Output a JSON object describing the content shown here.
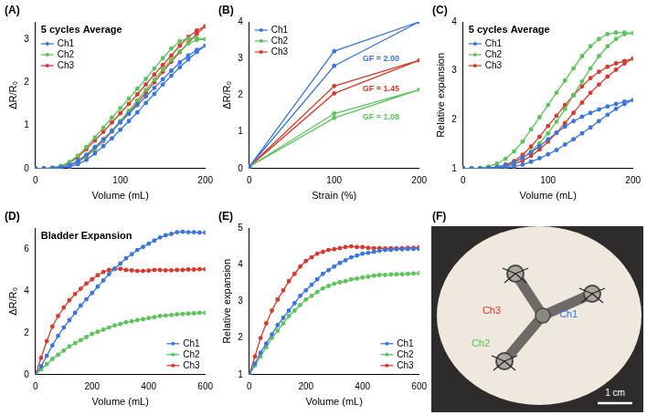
{
  "chart_data": [
    {
      "panel": "(A)",
      "type": "line",
      "title": "5 cycles Average",
      "x_label": "Volume (mL)",
      "y_label": "ΔR/R₀",
      "x": [
        0,
        10,
        20,
        30,
        40,
        50,
        60,
        70,
        80,
        90,
        100,
        110,
        120,
        130,
        140,
        150,
        160,
        170,
        180,
        190,
        200,
        190,
        180,
        170,
        160,
        150,
        140,
        130,
        120,
        110,
        100,
        90,
        80,
        70,
        60,
        50,
        40,
        30,
        20,
        10,
        0
      ],
      "series": [
        {
          "name": "Ch1",
          "color": "#3a75e0",
          "values": [
            0,
            0,
            0.01,
            0.03,
            0.08,
            0.18,
            0.32,
            0.5,
            0.68,
            0.87,
            1.07,
            1.27,
            1.47,
            1.67,
            1.87,
            2.07,
            2.27,
            2.46,
            2.62,
            2.75,
            2.85,
            2.7,
            2.53,
            2.35,
            2.15,
            1.95,
            1.73,
            1.52,
            1.3,
            1.1,
            0.9,
            0.7,
            0.52,
            0.35,
            0.2,
            0.1,
            0.04,
            0.01,
            0,
            0,
            0
          ]
        },
        {
          "name": "Ch2",
          "color": "#5cc45c",
          "values": [
            0,
            0,
            0.02,
            0.06,
            0.15,
            0.3,
            0.5,
            0.72,
            0.95,
            1.18,
            1.4,
            1.62,
            1.85,
            2.08,
            2.32,
            2.56,
            2.78,
            2.95,
            3.02,
            3.02,
            3.0,
            2.98,
            2.9,
            2.72,
            2.52,
            2.3,
            2.06,
            1.82,
            1.58,
            1.34,
            1.1,
            0.88,
            0.66,
            0.46,
            0.3,
            0.16,
            0.07,
            0.02,
            0,
            0,
            0
          ]
        },
        {
          "name": "Ch3",
          "color": "#d93a2e",
          "values": [
            0,
            0,
            0.02,
            0.05,
            0.13,
            0.27,
            0.45,
            0.65,
            0.85,
            1.07,
            1.28,
            1.5,
            1.72,
            1.95,
            2.18,
            2.4,
            2.62,
            2.85,
            3.05,
            3.2,
            3.3,
            3.12,
            2.92,
            2.7,
            2.48,
            2.24,
            2.0,
            1.76,
            1.52,
            1.3,
            1.08,
            0.86,
            0.64,
            0.45,
            0.28,
            0.15,
            0.06,
            0.02,
            0,
            0,
            0
          ]
        }
      ],
      "xlim": [
        0,
        200
      ],
      "xticks": [
        0,
        100,
        200
      ],
      "ylim": [
        0,
        3.4
      ],
      "yticks": [
        0,
        1,
        2,
        3
      ],
      "grid": false,
      "legend": "top-left",
      "marker": "circle"
    },
    {
      "panel": "(B)",
      "type": "line",
      "x_label": "Strain (%)",
      "y_label": "ΔR/R₀",
      "x": [
        0,
        100,
        200,
        100,
        0
      ],
      "series": [
        {
          "name": "Ch1",
          "color": "#3a75e0",
          "values": [
            0.05,
            2.8,
            4.0,
            3.2,
            0.05
          ]
        },
        {
          "name": "Ch2",
          "color": "#5cc45c",
          "values": [
            0.05,
            1.38,
            2.15,
            1.5,
            0.05
          ]
        },
        {
          "name": "Ch3",
          "color": "#d93a2e",
          "values": [
            0.05,
            2.05,
            2.95,
            2.25,
            0.05
          ]
        }
      ],
      "annotations": [
        {
          "text": "GF = 2.00",
          "x": 155,
          "y": 2.99,
          "color": "#3a75e0"
        },
        {
          "text": "GF = 1.45",
          "x": 155,
          "y": 2.17,
          "color": "#d93a2e"
        },
        {
          "text": "GF = 1.08",
          "x": 155,
          "y": 1.4,
          "color": "#5cc45c"
        }
      ],
      "xlim": [
        0,
        200
      ],
      "xticks": [
        0,
        100,
        200
      ],
      "ylim": [
        0,
        4
      ],
      "yticks": [
        0,
        1,
        2,
        3,
        4
      ],
      "grid": false,
      "legend": "top-left",
      "marker": "circle"
    },
    {
      "panel": "(C)",
      "type": "line",
      "title": "5 cycles Average",
      "x_label": "Volume (mL)",
      "y_label": "Relative expansion",
      "x": [
        0,
        10,
        20,
        30,
        40,
        50,
        60,
        70,
        80,
        90,
        100,
        110,
        120,
        130,
        140,
        150,
        160,
        170,
        180,
        190,
        200,
        190,
        180,
        170,
        160,
        150,
        140,
        130,
        120,
        110,
        100,
        90,
        80,
        70,
        60,
        50,
        40,
        30,
        20,
        10,
        0
      ],
      "series": [
        {
          "name": "Ch1",
          "color": "#3a75e0",
          "values": [
            1,
            1,
            1,
            1.01,
            1.03,
            1.07,
            1.13,
            1.22,
            1.33,
            1.46,
            1.6,
            1.73,
            1.86,
            1.97,
            2.06,
            2.14,
            2.21,
            2.27,
            2.32,
            2.37,
            2.4,
            2.32,
            2.22,
            2.1,
            1.97,
            1.84,
            1.72,
            1.6,
            1.49,
            1.38,
            1.29,
            1.21,
            1.14,
            1.08,
            1.04,
            1.02,
            1.01,
            1,
            1,
            1,
            1
          ]
        },
        {
          "name": "Ch2",
          "color": "#5cc45c",
          "values": [
            1,
            1,
            1.01,
            1.04,
            1.1,
            1.2,
            1.35,
            1.55,
            1.8,
            2.05,
            2.3,
            2.55,
            2.8,
            3.05,
            3.3,
            3.5,
            3.65,
            3.75,
            3.78,
            3.78,
            3.77,
            3.75,
            3.65,
            3.5,
            3.3,
            3.05,
            2.78,
            2.5,
            2.22,
            1.96,
            1.72,
            1.52,
            1.35,
            1.22,
            1.12,
            1.06,
            1.03,
            1.01,
            1,
            1,
            1
          ]
        },
        {
          "name": "Ch3",
          "color": "#d93a2e",
          "values": [
            1,
            1,
            1,
            1.01,
            1.03,
            1.08,
            1.15,
            1.28,
            1.45,
            1.65,
            1.87,
            2.08,
            2.3,
            2.5,
            2.68,
            2.85,
            2.98,
            3.08,
            3.15,
            3.2,
            3.25,
            3.15,
            3.02,
            2.88,
            2.72,
            2.55,
            2.35,
            2.14,
            1.93,
            1.73,
            1.55,
            1.39,
            1.26,
            1.16,
            1.09,
            1.04,
            1.02,
            1.01,
            1,
            1,
            1
          ]
        }
      ],
      "xlim": [
        0,
        200
      ],
      "xticks": [
        0,
        100,
        200
      ],
      "ylim": [
        1,
        4
      ],
      "yticks": [
        1,
        2,
        3,
        4
      ],
      "grid": false,
      "legend": "top-left",
      "marker": "circle"
    },
    {
      "panel": "(D)",
      "type": "line",
      "title": "Bladder Expansion",
      "x_label": "Volume (mL)",
      "y_label": "ΔR/R₀",
      "x": [
        0,
        20,
        40,
        60,
        80,
        100,
        120,
        140,
        160,
        180,
        200,
        220,
        240,
        260,
        280,
        300,
        320,
        340,
        360,
        380,
        400,
        420,
        440,
        460,
        480,
        500,
        520,
        540,
        560,
        580,
        600
      ],
      "series": [
        {
          "name": "Ch1",
          "color": "#3a75e0",
          "values": [
            0,
            0.4,
            0.9,
            1.4,
            1.85,
            2.25,
            2.6,
            2.95,
            3.3,
            3.6,
            3.9,
            4.2,
            4.5,
            4.8,
            5.05,
            5.3,
            5.55,
            5.75,
            5.95,
            6.1,
            6.25,
            6.4,
            6.55,
            6.65,
            6.72,
            6.8,
            6.82,
            6.8,
            6.8,
            6.78,
            6.78
          ]
        },
        {
          "name": "Ch2",
          "color": "#5cc45c",
          "values": [
            0,
            0.25,
            0.5,
            0.75,
            0.95,
            1.15,
            1.35,
            1.5,
            1.65,
            1.8,
            1.95,
            2.05,
            2.15,
            2.25,
            2.35,
            2.42,
            2.5,
            2.55,
            2.6,
            2.65,
            2.7,
            2.75,
            2.8,
            2.82,
            2.85,
            2.88,
            2.9,
            2.92,
            2.93,
            2.95,
            2.95
          ]
        },
        {
          "name": "Ch3",
          "color": "#d93a2e",
          "values": [
            0,
            0.8,
            1.6,
            2.3,
            2.8,
            3.2,
            3.55,
            3.85,
            4.1,
            4.35,
            4.55,
            4.75,
            4.9,
            5.0,
            5.05,
            5.05,
            5.0,
            4.98,
            4.95,
            4.95,
            4.97,
            5.0,
            5.0,
            4.98,
            4.98,
            5.0,
            5.0,
            5.02,
            5.02,
            5.03,
            5.03
          ]
        }
      ],
      "xlim": [
        0,
        600
      ],
      "xticks": [
        0,
        200,
        400,
        600
      ],
      "ylim": [
        0,
        7
      ],
      "yticks": [
        0,
        2,
        4,
        6
      ],
      "grid": false,
      "legend": "bottom-right",
      "marker": "circle"
    },
    {
      "panel": "(E)",
      "type": "line",
      "x_label": "Volume (mL)",
      "y_label": "Relative expansion",
      "x": [
        0,
        20,
        40,
        60,
        80,
        100,
        120,
        140,
        160,
        180,
        200,
        220,
        240,
        260,
        280,
        300,
        320,
        340,
        360,
        380,
        400,
        420,
        440,
        460,
        480,
        500,
        520,
        540,
        560,
        580,
        600
      ],
      "series": [
        {
          "name": "Ch1",
          "color": "#3a75e0",
          "values": [
            1,
            1.3,
            1.6,
            1.85,
            2.1,
            2.35,
            2.55,
            2.75,
            2.95,
            3.15,
            3.3,
            3.45,
            3.6,
            3.75,
            3.85,
            3.95,
            4.05,
            4.12,
            4.2,
            4.25,
            4.3,
            4.32,
            4.35,
            4.38,
            4.4,
            4.4,
            4.42,
            4.42,
            4.43,
            4.43,
            4.43
          ]
        },
        {
          "name": "Ch2",
          "color": "#5cc45c",
          "values": [
            1,
            1.25,
            1.5,
            1.75,
            2.0,
            2.2,
            2.4,
            2.6,
            2.75,
            2.9,
            3.05,
            3.15,
            3.25,
            3.35,
            3.42,
            3.48,
            3.52,
            3.55,
            3.6,
            3.62,
            3.65,
            3.67,
            3.7,
            3.72,
            3.72,
            3.73,
            3.74,
            3.74,
            3.75,
            3.76,
            3.77
          ]
        },
        {
          "name": "Ch3",
          "color": "#d93a2e",
          "values": [
            1,
            1.5,
            2.0,
            2.4,
            2.75,
            3.05,
            3.3,
            3.55,
            3.75,
            3.95,
            4.1,
            4.2,
            4.3,
            4.35,
            4.4,
            4.42,
            4.45,
            4.48,
            4.5,
            4.48,
            4.48,
            4.46,
            4.45,
            4.45,
            4.44,
            4.45,
            4.45,
            4.45,
            4.46,
            4.46,
            4.47
          ]
        }
      ],
      "xlim": [
        0,
        600
      ],
      "xticks": [
        0,
        200,
        400,
        600
      ],
      "ylim": [
        1,
        5
      ],
      "yticks": [
        1,
        2,
        3,
        4,
        5
      ],
      "grid": false,
      "legend": "bottom-right",
      "marker": "circle"
    }
  ],
  "photo": {
    "panel": "(F)",
    "labels": [
      {
        "text": "Ch3",
        "color": "#d93a2e"
      },
      {
        "text": "Ch1",
        "color": "#3a75e0"
      },
      {
        "text": "Ch2",
        "color": "#5cc45c"
      }
    ],
    "scale_bar": "1 cm"
  }
}
